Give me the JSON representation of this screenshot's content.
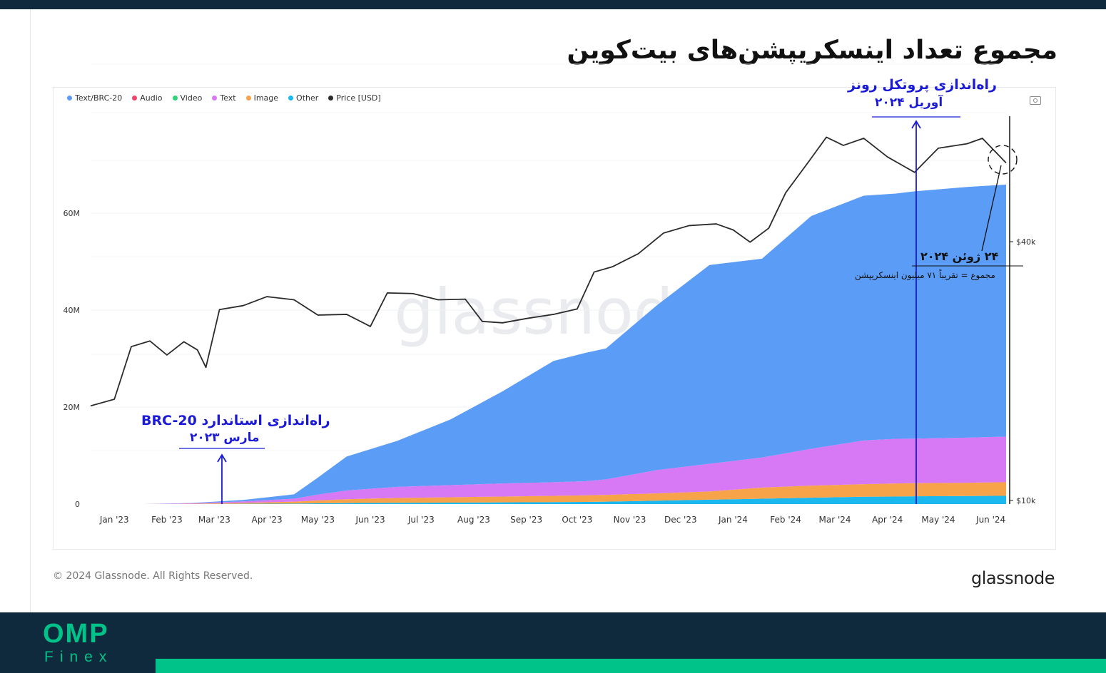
{
  "page": {
    "title": "مجموع تعداد اینسکریپشن‌های بیت‌کوین",
    "copyright": "© 2024 Glassnode. All Rights Reserved.",
    "brand": "glassnode",
    "watermark": "glassnode",
    "logo": {
      "top": "OMP",
      "bottom": "Finex"
    }
  },
  "annotations": {
    "runes_line1": "راه‌اندازی پروتکل رونز",
    "runes_line2": "آوریل ۲۰۲۴",
    "brc_line1": "راه‌اندازی استاندارد BRC-20",
    "brc_line2": "مارس ۲۰۲۳",
    "june_line1": "۲۴ ژوئن ۲۰۲۴",
    "june_line2": "مجموع = تقریباً ۷۱ میلیون اینسکریپشن"
  },
  "colors": {
    "text_brc20": "#5b9cf6",
    "audio": "#f0446b",
    "video": "#2fd47a",
    "text": "#d778f5",
    "image": "#f7a34a",
    "other": "#1ab8ef",
    "price": "#2b2b2b",
    "annotation": "#1a1ad6",
    "brand_dark": "#0f2a3d",
    "brand_accent": "#00c389"
  },
  "chart_data": {
    "type": "area",
    "stacked": true,
    "legend": [
      {
        "name": "Text/BRC-20",
        "color": "#5b9cf6"
      },
      {
        "name": "Audio",
        "color": "#f0446b"
      },
      {
        "name": "Video",
        "color": "#2fd47a"
      },
      {
        "name": "Text",
        "color": "#d778f5"
      },
      {
        "name": "Image",
        "color": "#f7a34a"
      },
      {
        "name": "Other",
        "color": "#1ab8ef"
      },
      {
        "name": "Price [USD]",
        "color": "#2b2b2b"
      }
    ],
    "legend_placement": "top-left",
    "x": [
      "2023-01-01",
      "2023-02-01",
      "2023-03-01",
      "2023-04-01",
      "2023-05-01",
      "2023-05-15",
      "2023-06-01",
      "2023-07-01",
      "2023-08-01",
      "2023-09-01",
      "2023-10-01",
      "2023-10-20",
      "2023-11-01",
      "2023-12-01",
      "2024-01-01",
      "2024-02-01",
      "2024-03-01",
      "2024-04-01",
      "2024-04-20",
      "2024-05-01",
      "2024-06-01",
      "2024-06-24"
    ],
    "x_tick_labels": [
      "Jan '23",
      "Feb '23",
      "Mar '23",
      "Apr '23",
      "May '23",
      "Jun '23",
      "Jul '23",
      "Aug '23",
      "Sep '23",
      "Oct '23",
      "Nov '23",
      "Dec '23",
      "Jan '24",
      "Feb '24",
      "Mar '24",
      "Apr '24",
      "May '24",
      "Jun '24"
    ],
    "y_left": {
      "ticks": [
        0,
        20000000,
        40000000,
        60000000
      ],
      "tick_labels": [
        "0",
        "20M",
        "40M",
        "60M"
      ],
      "range": [
        0,
        80000000
      ]
    },
    "y_right": {
      "scale": "log",
      "ticks": [
        10000,
        40000
      ],
      "tick_labels": [
        "$10k",
        "$40k"
      ]
    },
    "series": [
      {
        "name": "Other",
        "values": [
          0,
          0,
          0,
          0.05,
          0.1,
          0.15,
          0.2,
          0.25,
          0.3,
          0.35,
          0.4,
          0.45,
          0.5,
          0.7,
          0.9,
          1.1,
          1.3,
          1.5,
          1.55,
          1.6,
          1.65,
          1.7
        ]
      },
      {
        "name": "Image",
        "values": [
          0,
          0,
          0.05,
          0.2,
          0.4,
          0.6,
          0.8,
          1.0,
          1.1,
          1.2,
          1.3,
          1.35,
          1.4,
          1.5,
          1.7,
          2.3,
          2.5,
          2.6,
          2.7,
          2.7,
          2.75,
          2.8
        ]
      },
      {
        "name": "Text",
        "values": [
          0,
          0,
          0.1,
          0.3,
          0.6,
          1.2,
          1.8,
          2.3,
          2.5,
          2.7,
          2.8,
          2.9,
          3.2,
          4.8,
          5.7,
          6.2,
          7.6,
          9.0,
          9.2,
          9.2,
          9.3,
          9.4
        ]
      },
      {
        "name": "Text/BRC-20",
        "values": [
          0,
          0,
          0.05,
          0.3,
          0.9,
          3.5,
          7.0,
          9.5,
          13.5,
          19.0,
          25.0,
          26.5,
          27.0,
          34.0,
          41.0,
          41.0,
          48.0,
          50.5,
          50.6,
          51.0,
          51.7,
          52.0
        ]
      }
    ],
    "series_units": "millions of inscriptions (cumulative)",
    "price": {
      "name": "Price [USD]",
      "x": [
        "2023-01-01",
        "2023-01-15",
        "2023-01-25",
        "2023-02-05",
        "2023-02-15",
        "2023-02-25",
        "2023-03-05",
        "2023-03-10",
        "2023-03-18",
        "2023-04-01",
        "2023-04-15",
        "2023-05-01",
        "2023-05-15",
        "2023-06-01",
        "2023-06-15",
        "2023-06-25",
        "2023-07-10",
        "2023-07-25",
        "2023-08-10",
        "2023-08-20",
        "2023-09-01",
        "2023-09-15",
        "2023-10-01",
        "2023-10-15",
        "2023-10-25",
        "2023-11-05",
        "2023-11-20",
        "2023-12-05",
        "2023-12-20",
        "2024-01-05",
        "2024-01-15",
        "2024-01-25",
        "2024-02-05",
        "2024-02-15",
        "2024-02-28",
        "2024-03-10",
        "2024-03-20",
        "2024-04-01",
        "2024-04-15",
        "2024-05-01",
        "2024-05-15",
        "2024-06-01",
        "2024-06-10",
        "2024-06-24"
      ],
      "values": [
        16600,
        17200,
        22800,
        23500,
        21800,
        23400,
        22400,
        20400,
        27800,
        28400,
        29800,
        29300,
        27000,
        27100,
        25400,
        30400,
        30300,
        29300,
        29400,
        26100,
        25900,
        26500,
        27100,
        27900,
        34000,
        35000,
        37500,
        41900,
        43600,
        44000,
        42600,
        39900,
        43000,
        52000,
        61000,
        70000,
        67000,
        69600,
        63000,
        58000,
        66000,
        67600,
        69600,
        61000
      ]
    }
  }
}
